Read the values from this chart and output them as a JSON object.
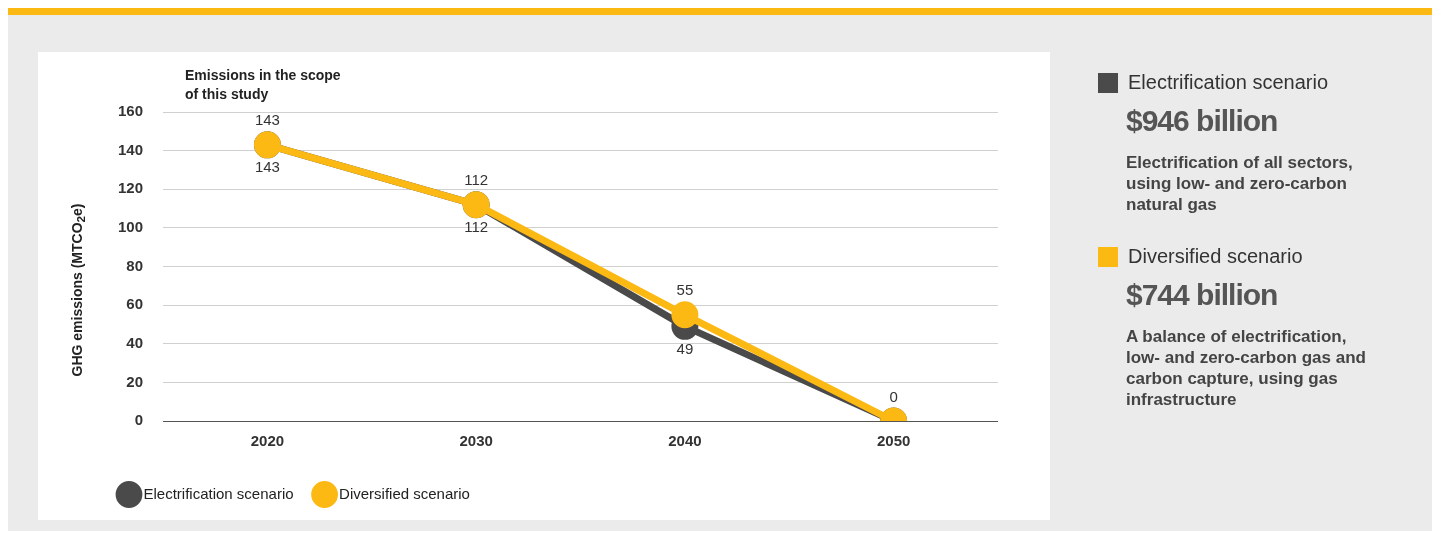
{
  "chart_data": {
    "type": "line",
    "subtitle": "Emissions in the scope of this study",
    "ylabel": "GHG emissions (MTCO$_{2}$e)",
    "categories": [
      "2020",
      "2030",
      "2040",
      "2050"
    ],
    "series": [
      {
        "name": "Electrification scenario",
        "color": "#4a4a4a",
        "values": [
          143,
          112,
          49,
          0
        ],
        "value_labels": [
          "143",
          "112",
          "49",
          null
        ]
      },
      {
        "name": "Diversified scenario",
        "color": "#fdb913",
        "values": [
          143,
          112,
          55,
          0
        ],
        "value_labels": [
          "143",
          "112",
          "55",
          "0"
        ]
      }
    ],
    "ylim": [
      0,
      160
    ],
    "yticks": [
      0,
      20,
      40,
      60,
      80,
      100,
      120,
      140,
      160
    ],
    "grid": "y",
    "legend": "bottom left",
    "marker": "circle",
    "line_style": "solid",
    "annotations": [
      "Electrification scenario",
      "$946 billion",
      "Electrification of all sectors, using low- and zero-carbon natural gas",
      "Diversified scenario",
      "$744 billion",
      "A balance of electrification, low- and zero-carbon gas and carbon capture, using gas infrastructure"
    ]
  }
}
